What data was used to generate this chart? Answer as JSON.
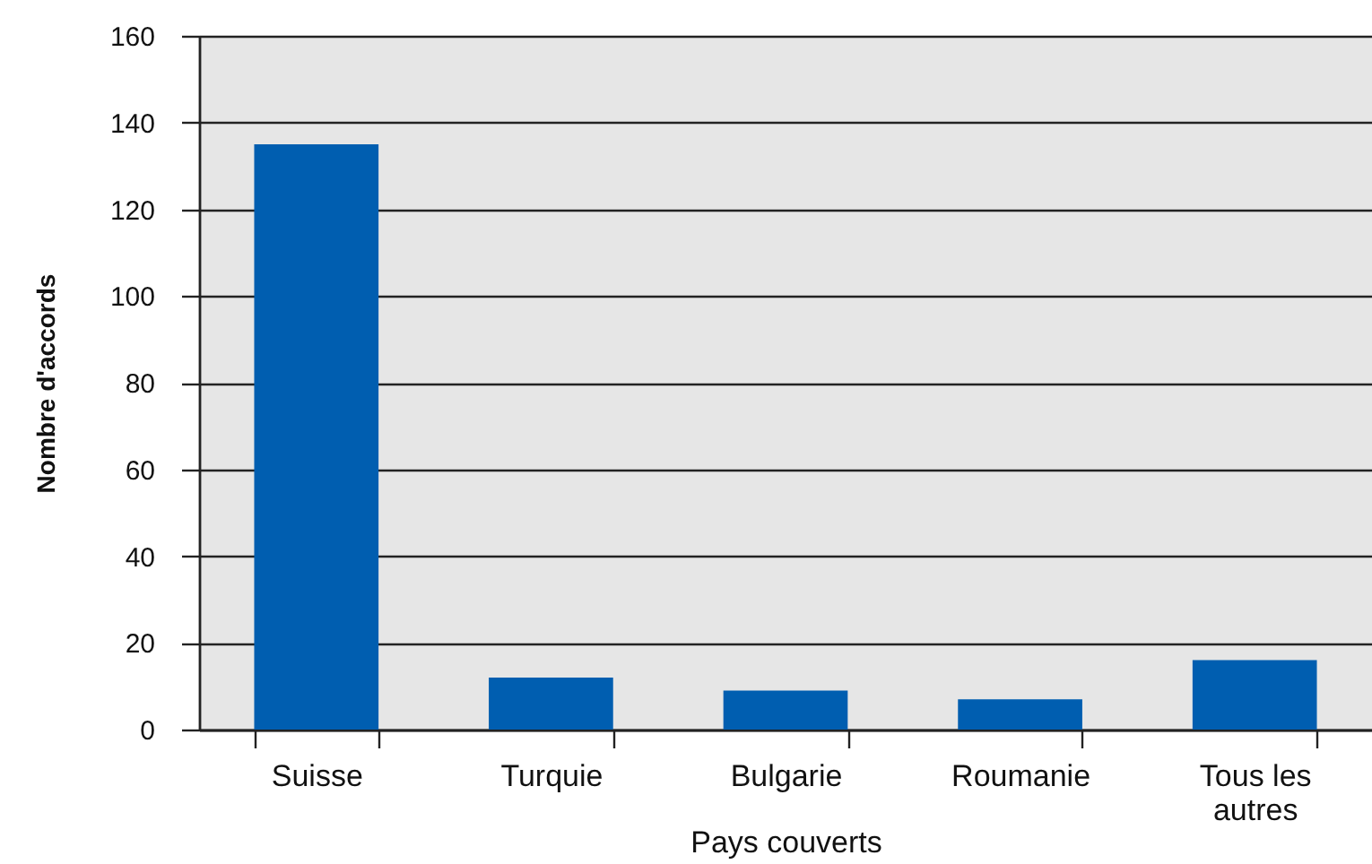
{
  "chart_data": {
    "type": "bar",
    "xlabel": "Pays couverts",
    "ylabel": "Nombre d'accords",
    "categories": [
      "Suisse",
      "Turquie",
      "Bulgarie",
      "Roumanie",
      "Tous les autres"
    ],
    "values": [
      135,
      12,
      9,
      7,
      16
    ],
    "color": "#005eb0",
    "ylim": [
      0,
      160
    ],
    "yticks": [
      0,
      20,
      40,
      60,
      80,
      100,
      120,
      140,
      160
    ],
    "grid": "y"
  }
}
